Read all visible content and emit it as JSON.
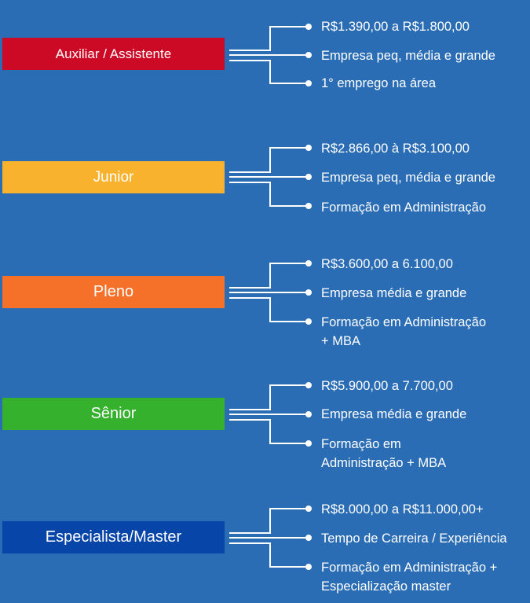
{
  "colors": {
    "background": "#2a6db5",
    "auxiliar": "#cc0a25",
    "junior": "#f8b22e",
    "pleno": "#f5712a",
    "senior": "#35b12e",
    "especialista": "#0845a8",
    "line": "#ffffff"
  },
  "levels": [
    {
      "label": "Auxiliar / Assistente",
      "items": [
        [
          "R$1.390,00 a R$1.800,00"
        ],
        [
          "Empresa peq, média e grande"
        ],
        [
          "1° emprego na área"
        ]
      ]
    },
    {
      "label": "Junior",
      "items": [
        [
          "R$2.866,00 à R$3.100,00"
        ],
        [
          "Empresa peq, média e grande"
        ],
        [
          "Formação em Administração"
        ]
      ]
    },
    {
      "label": "Pleno",
      "items": [
        [
          "R$3.600,00 a 6.100,00"
        ],
        [
          "Empresa média e grande"
        ],
        [
          "Formação em Administração",
          "+ MBA"
        ]
      ]
    },
    {
      "label": "Sênior",
      "items": [
        [
          "R$5.900,00 a 7.700,00"
        ],
        [
          "Empresa média e grande"
        ],
        [
          "Formação em",
          "Administração + MBA"
        ]
      ]
    },
    {
      "label": "Especialista/Master",
      "items": [
        [
          "R$8.000,00 a R$11.000,00+"
        ],
        [
          "Tempo de Carreira / Experiência"
        ],
        [
          "Formação em Administração +",
          "Especialização master"
        ]
      ]
    }
  ]
}
